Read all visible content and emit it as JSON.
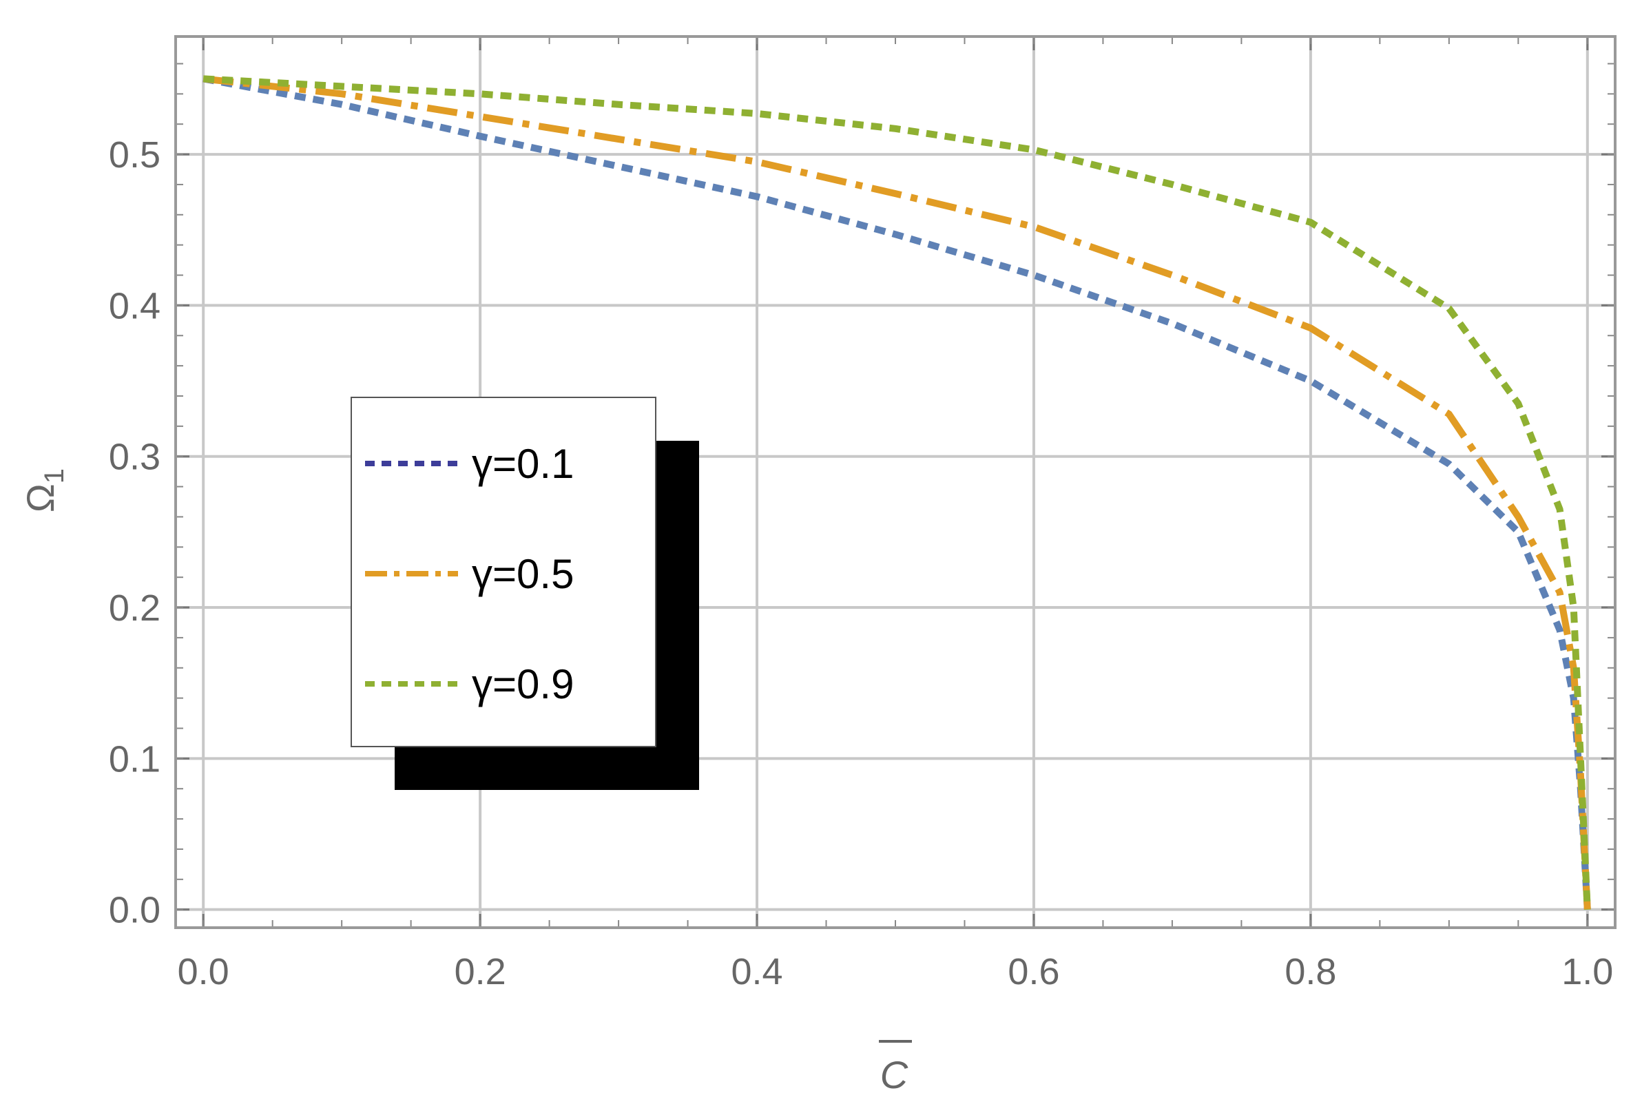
{
  "chart_data": {
    "type": "line",
    "title": "",
    "xlabel": "C",
    "xlabel_overbar": true,
    "ylabel": "Ω",
    "ylabel_subscript": "1",
    "xlim": [
      -0.02,
      1.02
    ],
    "ylim": [
      -0.012,
      0.578
    ],
    "xticks": [
      "0.0",
      "0.2",
      "0.4",
      "0.6",
      "0.8",
      "1.0"
    ],
    "xtick_values": [
      0,
      0.2,
      0.4,
      0.6,
      0.8,
      1.0
    ],
    "yticks": [
      "0.0",
      "0.1",
      "0.2",
      "0.3",
      "0.4",
      "0.5"
    ],
    "ytick_values": [
      0,
      0.1,
      0.2,
      0.3,
      0.4,
      0.5
    ],
    "grid": true,
    "legend_position": "center-left",
    "series": [
      {
        "name": "γ=0.1",
        "color": "#5e81b5",
        "legend_color": "#3d3d99",
        "dash": "dotted",
        "x": [
          0,
          0.1,
          0.2,
          0.3,
          0.4,
          0.5,
          0.6,
          0.7,
          0.8,
          0.9,
          0.95,
          0.98,
          0.99,
          0.995,
          1.0
        ],
        "y": [
          0.55,
          0.533,
          0.512,
          0.492,
          0.472,
          0.447,
          0.42,
          0.388,
          0.35,
          0.295,
          0.25,
          0.185,
          0.14,
          0.08,
          0.0
        ]
      },
      {
        "name": "γ=0.5",
        "color": "#e19c24",
        "legend_color": "#e19c24",
        "dash": "dashdot",
        "x": [
          0,
          0.1,
          0.2,
          0.3,
          0.4,
          0.5,
          0.6,
          0.7,
          0.8,
          0.9,
          0.95,
          0.98,
          0.99,
          0.995,
          1.0
        ],
        "y": [
          0.55,
          0.54,
          0.525,
          0.51,
          0.495,
          0.474,
          0.452,
          0.42,
          0.385,
          0.328,
          0.26,
          0.21,
          0.16,
          0.09,
          0.0
        ]
      },
      {
        "name": "γ=0.9",
        "color": "#8fb032",
        "legend_color": "#8fb032",
        "dash": "dotted",
        "x": [
          0,
          0.1,
          0.2,
          0.3,
          0.4,
          0.5,
          0.6,
          0.7,
          0.8,
          0.9,
          0.95,
          0.98,
          0.99,
          0.995,
          1.0
        ],
        "y": [
          0.55,
          0.545,
          0.54,
          0.533,
          0.527,
          0.517,
          0.503,
          0.48,
          0.455,
          0.398,
          0.335,
          0.265,
          0.2,
          0.1,
          0.0
        ]
      }
    ]
  }
}
